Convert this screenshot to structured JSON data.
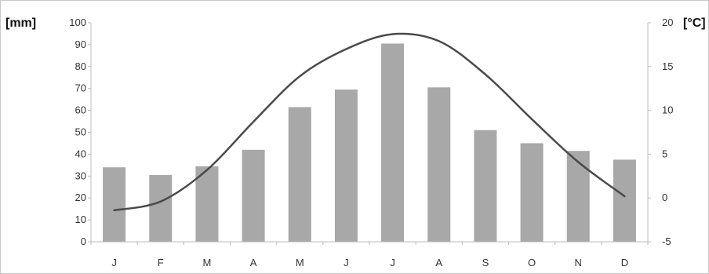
{
  "chart_data": {
    "type": "bar",
    "categories": [
      "J",
      "F",
      "M",
      "A",
      "M",
      "J",
      "J",
      "A",
      "S",
      "O",
      "N",
      "D"
    ],
    "series": [
      {
        "type": "bar",
        "axis": "left",
        "values": [
          34,
          30.5,
          34.5,
          42,
          61.5,
          69.5,
          90.5,
          70.5,
          51,
          45,
          41.5,
          37.5
        ],
        "color": "#a8a8a8"
      },
      {
        "type": "line",
        "axis": "right",
        "values": [
          -1.4,
          -0.4,
          3.2,
          8.7,
          13.9,
          17.0,
          18.7,
          17.9,
          14.1,
          9.0,
          4.1,
          0.2
        ],
        "color": "#4a4a4a"
      }
    ],
    "y_left": {
      "label": "[mm]",
      "range": [
        0,
        100
      ],
      "ticks": [
        0,
        10,
        20,
        30,
        40,
        50,
        60,
        70,
        80,
        90,
        100
      ]
    },
    "y_right": {
      "label": "[°C]",
      "range": [
        -5,
        20
      ],
      "ticks": [
        -5,
        0,
        5,
        10,
        15,
        20
      ]
    },
    "grid": false,
    "legend": "none"
  }
}
